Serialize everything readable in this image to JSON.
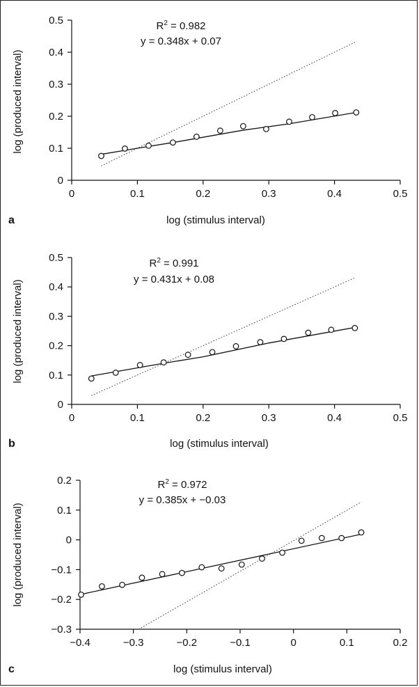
{
  "chart_data": [
    {
      "type": "scatter",
      "panel": "a",
      "xlabel": "log (stimulus interval)",
      "ylabel": "log (produced interval)",
      "xlim": [
        0,
        0.5
      ],
      "ylim": [
        0,
        0.5
      ],
      "xticks": [
        "0",
        "0.1",
        "0.2",
        "0.3",
        "0.4",
        "0.5"
      ],
      "yticks": [
        "0",
        "0.1",
        "0.2",
        "0.3",
        "0.4",
        "0.5"
      ],
      "annotation": {
        "r2_prefix": "R",
        "r2_exp": "2",
        "r2_value": " = 0.982",
        "equation": "y = 0.348x + 0.07"
      },
      "points": [
        [
          0.045,
          0.076
        ],
        [
          0.081,
          0.099
        ],
        [
          0.117,
          0.108
        ],
        [
          0.154,
          0.118
        ],
        [
          0.19,
          0.136
        ],
        [
          0.226,
          0.155
        ],
        [
          0.261,
          0.169
        ],
        [
          0.296,
          0.16
        ],
        [
          0.331,
          0.183
        ],
        [
          0.366,
          0.197
        ],
        [
          0.401,
          0.21
        ],
        [
          0.433,
          0.212
        ]
      ],
      "fit_line": [
        [
          0.045,
          0.081
        ],
        [
          0.1,
          0.1
        ],
        [
          0.16,
          0.12
        ],
        [
          0.26,
          0.156
        ],
        [
          0.33,
          0.176
        ],
        [
          0.433,
          0.212
        ]
      ],
      "identity_line": [
        [
          0.045,
          0.045
        ],
        [
          0.433,
          0.433
        ]
      ]
    },
    {
      "type": "scatter",
      "panel": "b",
      "xlabel": "log (stimulus interval)",
      "ylabel": "log (produced interval)",
      "xlim": [
        0,
        0.5
      ],
      "ylim": [
        0,
        0.5
      ],
      "xticks": [
        "0",
        "0.1",
        "0.2",
        "0.3",
        "0.4",
        "0.5"
      ],
      "yticks": [
        "0",
        "0.1",
        "0.2",
        "0.3",
        "0.4",
        "0.5"
      ],
      "annotation": {
        "r2_prefix": "R",
        "r2_exp": "2",
        "r2_value": " = 0.991",
        "equation": "y = 0.431x + 0.08"
      },
      "points": [
        [
          0.03,
          0.088
        ],
        [
          0.067,
          0.108
        ],
        [
          0.104,
          0.134
        ],
        [
          0.14,
          0.143
        ],
        [
          0.177,
          0.169
        ],
        [
          0.214,
          0.178
        ],
        [
          0.25,
          0.198
        ],
        [
          0.287,
          0.212
        ],
        [
          0.323,
          0.223
        ],
        [
          0.36,
          0.244
        ],
        [
          0.395,
          0.254
        ],
        [
          0.431,
          0.26
        ]
      ],
      "fit_line": [
        [
          0.03,
          0.097
        ],
        [
          0.14,
          0.14
        ],
        [
          0.2,
          0.162
        ],
        [
          0.3,
          0.209
        ],
        [
          0.431,
          0.262
        ]
      ],
      "identity_line": [
        [
          0.03,
          0.03
        ],
        [
          0.431,
          0.431
        ]
      ]
    },
    {
      "type": "scatter",
      "panel": "c",
      "xlabel": "log (stimulus interval)",
      "ylabel": "log (produced interval)",
      "xlim": [
        -0.4,
        0.2
      ],
      "ylim": [
        -0.3,
        0.2
      ],
      "xticks": [
        "−0.4",
        "−0.3",
        "−0.2",
        "−0.1",
        "0",
        "0.1",
        "0.2"
      ],
      "yticks": [
        "−0.3",
        "−0.2",
        "−0.1",
        "0",
        "0.1",
        "0.2"
      ],
      "annotation": {
        "r2_prefix": "R",
        "r2_exp": "2",
        "r2_value": " = 0.972",
        "equation": "y = 0.385x + −0.03"
      },
      "points": [
        [
          -0.398,
          -0.184
        ],
        [
          -0.359,
          -0.156
        ],
        [
          -0.321,
          -0.151
        ],
        [
          -0.284,
          -0.127
        ],
        [
          -0.246,
          -0.115
        ],
        [
          -0.209,
          -0.111
        ],
        [
          -0.172,
          -0.092
        ],
        [
          -0.135,
          -0.096
        ],
        [
          -0.097,
          -0.083
        ],
        [
          -0.059,
          -0.063
        ],
        [
          -0.021,
          -0.043
        ],
        [
          0.015,
          -0.003
        ],
        [
          0.053,
          0.006
        ],
        [
          0.09,
          0.006
        ],
        [
          0.127,
          0.025
        ]
      ],
      "fit_line": [
        [
          -0.398,
          -0.183
        ],
        [
          0.127,
          0.019
        ]
      ],
      "identity_line": [
        [
          -0.29,
          -0.3
        ],
        [
          0.127,
          0.127
        ]
      ]
    }
  ]
}
